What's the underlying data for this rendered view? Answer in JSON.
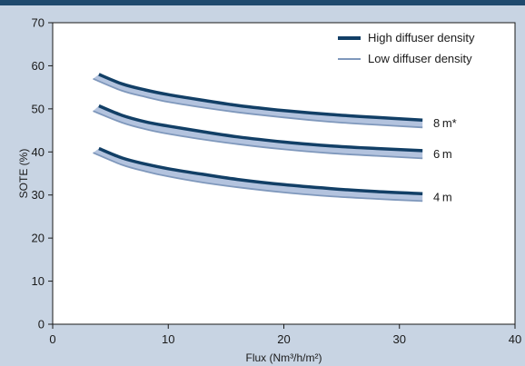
{
  "chart_data": {
    "type": "line",
    "title": "",
    "xlabel": "Flux (Nm³/h/m²)",
    "ylabel": "SOTE (%)",
    "xlim": [
      0,
      40
    ],
    "ylim": [
      0,
      70
    ],
    "x_ticks": [
      "0",
      "10",
      "20",
      "30",
      "40"
    ],
    "y_ticks": [
      "0",
      "10",
      "20",
      "30",
      "40",
      "50",
      "60",
      "70"
    ],
    "legend": {
      "position": "top-right",
      "entries": [
        {
          "label": "High diffuser density",
          "color": "#123f66"
        },
        {
          "label": "Low diffuser density",
          "color": "#7f98bc"
        }
      ]
    },
    "band_fill": "#b3c3de",
    "groups": [
      {
        "label": "8 m*",
        "high": {
          "x": [
            4,
            6,
            8,
            10,
            13,
            16,
            20,
            24,
            28,
            32
          ],
          "y": [
            58.0,
            55.8,
            54.4,
            53.3,
            52.0,
            50.8,
            49.6,
            48.7,
            48.0,
            47.4
          ]
        },
        "low": {
          "x": [
            3.5,
            6,
            8,
            10,
            13,
            16,
            20,
            24,
            28,
            32
          ],
          "y": [
            57.0,
            54.2,
            52.8,
            51.6,
            50.3,
            49.2,
            48.0,
            47.0,
            46.3,
            45.7
          ]
        }
      },
      {
        "label": "6 m",
        "high": {
          "x": [
            4,
            6,
            8,
            10,
            13,
            16,
            20,
            24,
            28,
            32
          ],
          "y": [
            50.7,
            48.5,
            47.0,
            46.0,
            44.7,
            43.5,
            42.3,
            41.4,
            40.8,
            40.3
          ]
        },
        "low": {
          "x": [
            3.5,
            6,
            8,
            10,
            13,
            16,
            20,
            24,
            28,
            32
          ],
          "y": [
            49.5,
            46.8,
            45.3,
            44.2,
            42.9,
            41.8,
            40.6,
            39.7,
            39.1,
            38.5
          ]
        }
      },
      {
        "label": "4 m",
        "high": {
          "x": [
            4,
            6,
            8,
            10,
            13,
            16,
            20,
            24,
            28,
            32
          ],
          "y": [
            40.8,
            38.6,
            37.2,
            36.1,
            34.8,
            33.6,
            32.4,
            31.5,
            30.8,
            30.3
          ]
        },
        "low": {
          "x": [
            3.5,
            6,
            8,
            10,
            13,
            16,
            20,
            24,
            28,
            32
          ],
          "y": [
            39.8,
            37.0,
            35.5,
            34.3,
            32.9,
            31.8,
            30.6,
            29.7,
            29.1,
            28.6
          ]
        }
      }
    ]
  }
}
